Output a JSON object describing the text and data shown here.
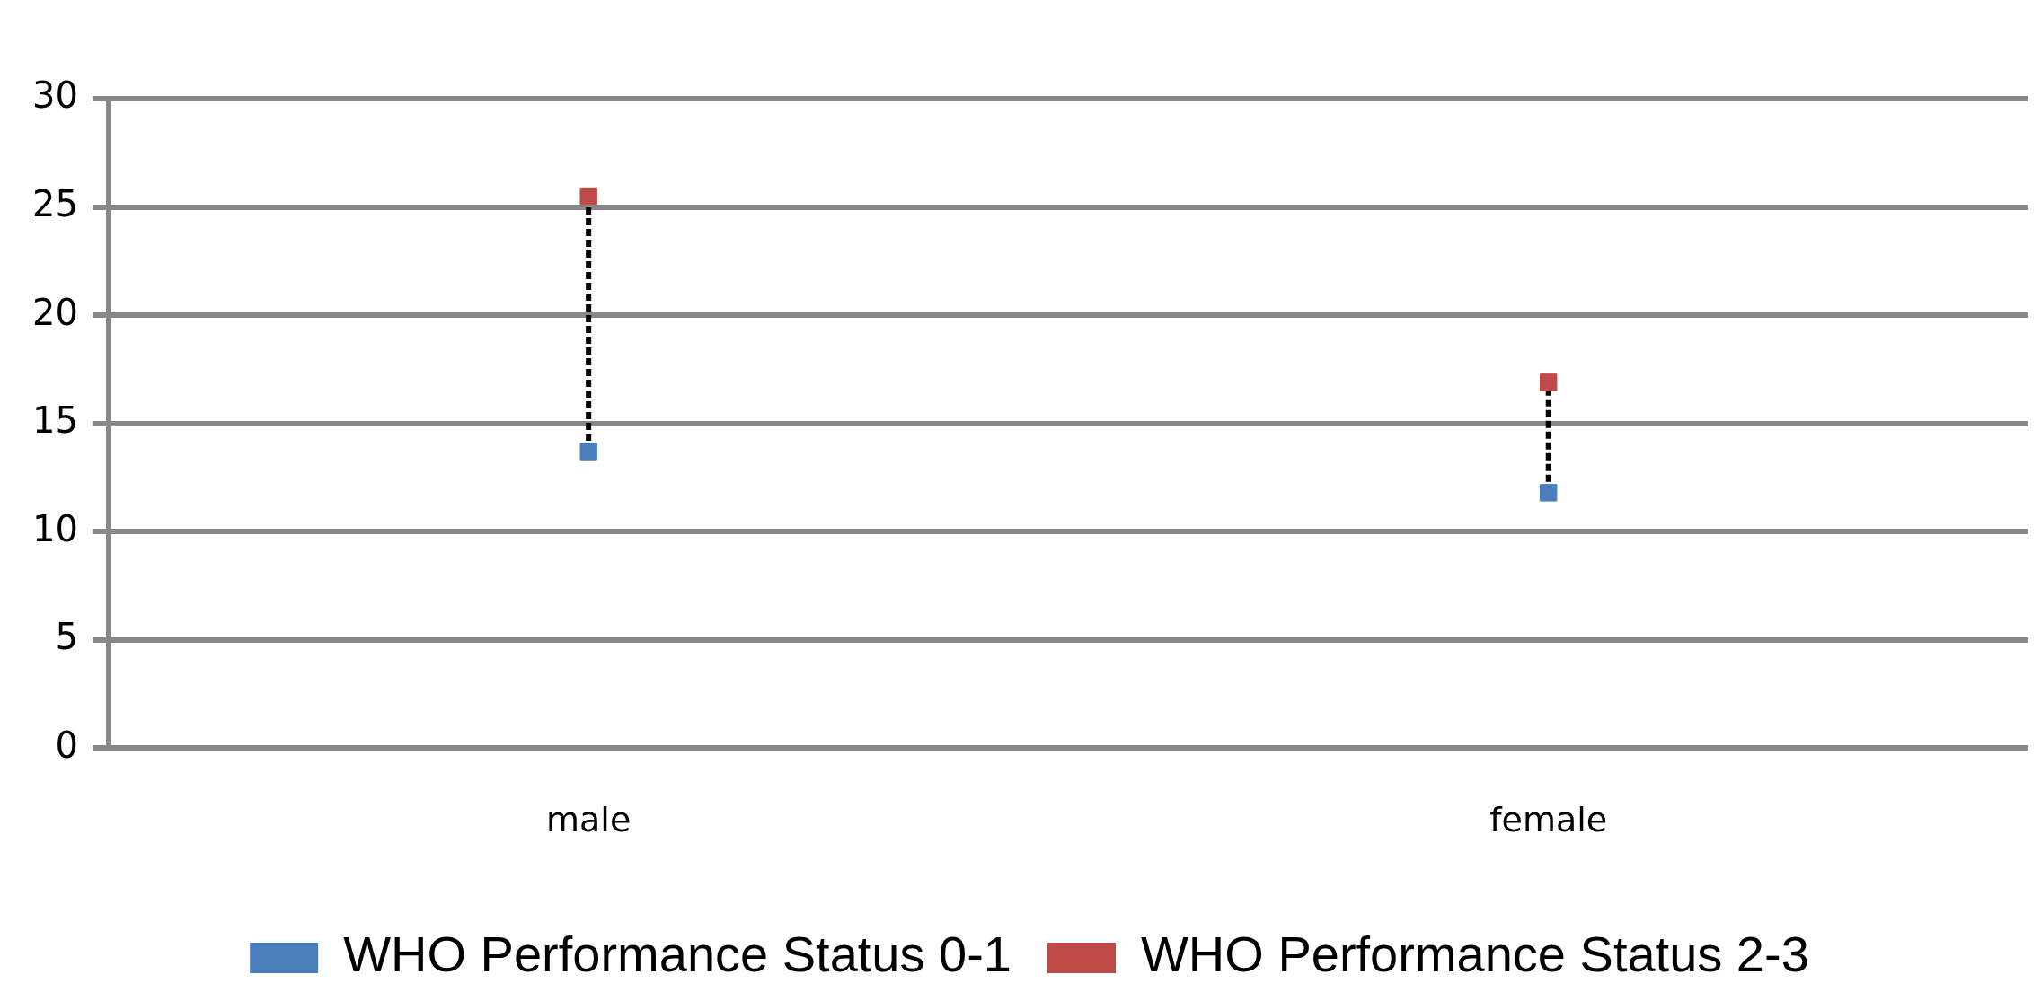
{
  "chart_data": {
    "type": "scatter",
    "categories": [
      "male",
      "female"
    ],
    "series": [
      {
        "name": "WHO Performance Status 0-1",
        "color": "#4a7ebb",
        "values": [
          13.7,
          11.8
        ]
      },
      {
        "name": "WHO Performance Status 2-3",
        "color": "#be4b48",
        "values": [
          25.5,
          16.9
        ]
      }
    ],
    "ylim": [
      0,
      30
    ],
    "yticks": [
      0,
      5,
      10,
      15,
      20,
      25,
      30
    ],
    "grid": "y",
    "legend": "bottom",
    "marker": "square"
  }
}
